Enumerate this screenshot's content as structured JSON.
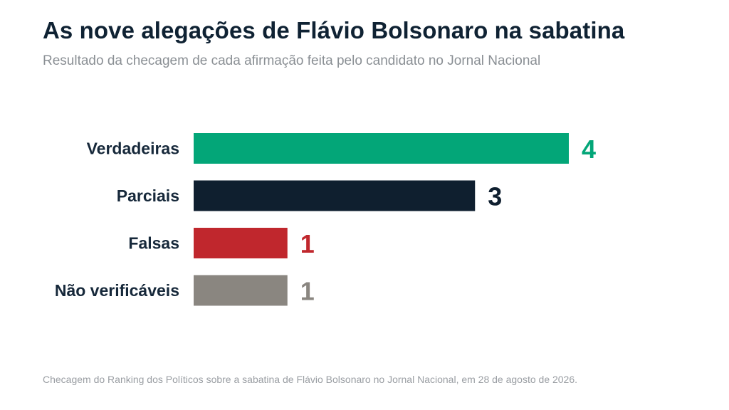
{
  "header": {
    "title": "As nove alegações de Flávio Bolsonaro na sabatina",
    "subtitle": "Resultado da checagem de cada afirmação feita pelo candidato no Jornal Nacional"
  },
  "footer": {
    "note": "Checagem do Ranking dos Políticos sobre a sabatina de Flávio Bolsonaro no Jornal Nacional, em 28 de agosto de 2026."
  },
  "chart_data": {
    "type": "bar",
    "orientation": "horizontal",
    "title": "As nove alegações de Flávio Bolsonaro na sabatina",
    "subtitle": "Resultado da checagem de cada afirmação feita pelo candidato no Jornal Nacional",
    "categories": [
      "Verdadeiras",
      "Parciais",
      "Falsas",
      "Não verificáveis"
    ],
    "values": [
      4,
      3,
      1,
      1
    ],
    "colors": [
      "#03a678",
      "#0f1f2f",
      "#c0272d",
      "#8a8680"
    ],
    "xlim": [
      0,
      4
    ],
    "grid": false,
    "legend": "none",
    "data_labels": true
  }
}
